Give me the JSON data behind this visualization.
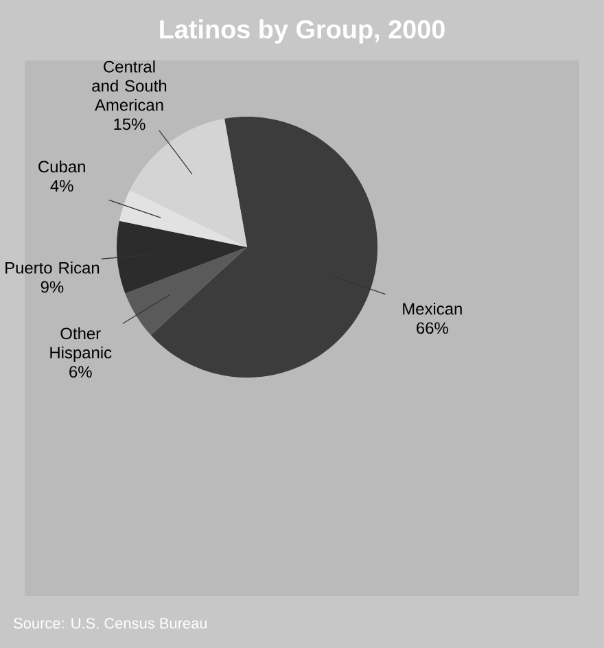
{
  "chart_data": {
    "type": "pie",
    "title": "Latinos by Group, 2000",
    "categories": [
      "Mexican",
      "Other Hispanic",
      "Puerto Rican",
      "Cuban",
      "Central and South American"
    ],
    "values": [
      66,
      6,
      9,
      4,
      15
    ],
    "value_labels": [
      "66%",
      "6%",
      "9%",
      "4%",
      "15%"
    ],
    "colors": [
      "#3c3c3c",
      "#5a5a5a",
      "#2c2c2c",
      "#e2e2e2",
      "#d4d4d4"
    ],
    "annotations": [
      "Source: U.S. Census Bureau"
    ]
  }
}
